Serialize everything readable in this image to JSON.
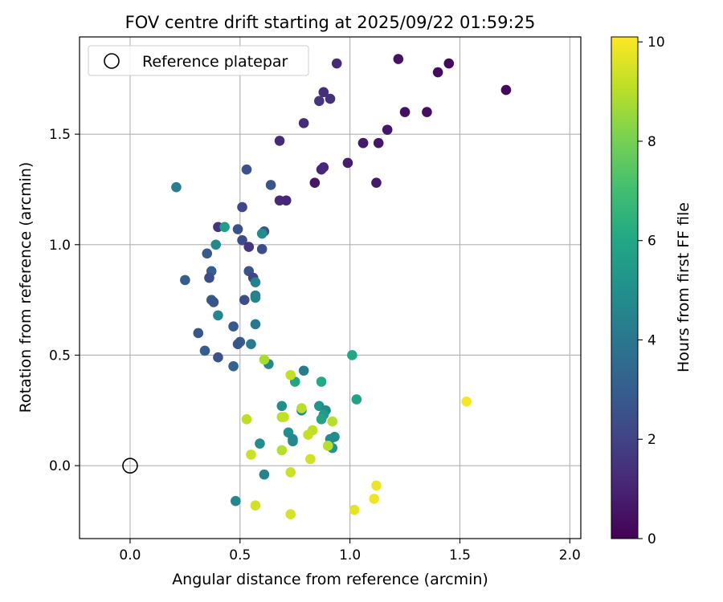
{
  "chart_data": {
    "type": "scatter",
    "title": "FOV centre drift starting at 2025/09/22 01:59:25",
    "xlabel": "Angular distance from reference (arcmin)",
    "ylabel": "Rotation from reference (arcmin)",
    "xlim": [
      -0.23,
      2.05
    ],
    "ylim": [
      -0.33,
      1.94
    ],
    "xticks": [
      0.0,
      0.5,
      1.0,
      1.5,
      2.0
    ],
    "xtick_labels": [
      "0.0",
      "0.5",
      "1.0",
      "1.5",
      "2.0"
    ],
    "yticks": [
      0.0,
      0.5,
      1.0,
      1.5
    ],
    "ytick_labels": [
      "0.0",
      "0.5",
      "1.0",
      "1.5"
    ],
    "grid": true,
    "legend": {
      "position": "upper-left",
      "entries": [
        {
          "label": "Reference platepar",
          "marker": "open-circle"
        }
      ]
    },
    "reference_point": {
      "x": 0.0,
      "y": 0.0
    },
    "colorbar": {
      "label": "Hours from first FF file",
      "colormap": "viridis",
      "range": [
        0,
        10.1
      ],
      "ticks": [
        0,
        2,
        4,
        6,
        8,
        10
      ],
      "tick_labels": [
        "0",
        "2",
        "4",
        "6",
        "8",
        "10"
      ]
    },
    "points": [
      {
        "x": 1.71,
        "y": 1.7,
        "h": 0.2
      },
      {
        "x": 1.45,
        "y": 1.82,
        "h": 0.2
      },
      {
        "x": 1.4,
        "y": 1.78,
        "h": 0.3
      },
      {
        "x": 1.22,
        "y": 1.84,
        "h": 0.5
      },
      {
        "x": 1.35,
        "y": 1.6,
        "h": 0.4
      },
      {
        "x": 1.25,
        "y": 1.6,
        "h": 0.4
      },
      {
        "x": 1.17,
        "y": 1.52,
        "h": 0.6
      },
      {
        "x": 1.13,
        "y": 1.46,
        "h": 0.6
      },
      {
        "x": 1.06,
        "y": 1.46,
        "h": 0.6
      },
      {
        "x": 1.06,
        "y": 1.46,
        "h": 0.7
      },
      {
        "x": 0.99,
        "y": 1.37,
        "h": 0.8
      },
      {
        "x": 1.12,
        "y": 1.28,
        "h": 0.7
      },
      {
        "x": 0.84,
        "y": 1.28,
        "h": 0.6
      },
      {
        "x": 0.87,
        "y": 1.34,
        "h": 1.0
      },
      {
        "x": 0.88,
        "y": 1.35,
        "h": 1.1
      },
      {
        "x": 0.94,
        "y": 1.82,
        "h": 1.2
      },
      {
        "x": 0.88,
        "y": 1.69,
        "h": 1.3
      },
      {
        "x": 0.86,
        "y": 1.65,
        "h": 1.5
      },
      {
        "x": 0.91,
        "y": 1.66,
        "h": 1.4
      },
      {
        "x": 0.79,
        "y": 1.55,
        "h": 1.3
      },
      {
        "x": 0.68,
        "y": 1.47,
        "h": 1.2
      },
      {
        "x": 0.68,
        "y": 1.2,
        "h": 1.2
      },
      {
        "x": 0.71,
        "y": 1.2,
        "h": 1.1
      },
      {
        "x": 0.53,
        "y": 1.34,
        "h": 2.5
      },
      {
        "x": 0.64,
        "y": 1.27,
        "h": 2.7
      },
      {
        "x": 0.51,
        "y": 1.17,
        "h": 2.1
      },
      {
        "x": 0.4,
        "y": 1.08,
        "h": 1.5
      },
      {
        "x": 0.49,
        "y": 1.07,
        "h": 2.5
      },
      {
        "x": 0.61,
        "y": 1.06,
        "h": 2.6
      },
      {
        "x": 0.51,
        "y": 1.02,
        "h": 2.3
      },
      {
        "x": 0.54,
        "y": 0.99,
        "h": 1.5
      },
      {
        "x": 0.6,
        "y": 0.98,
        "h": 2.4
      },
      {
        "x": 0.35,
        "y": 0.96,
        "h": 2.9
      },
      {
        "x": 0.37,
        "y": 0.88,
        "h": 3.0
      },
      {
        "x": 0.54,
        "y": 0.88,
        "h": 2.6
      },
      {
        "x": 0.56,
        "y": 0.85,
        "h": 2.0
      },
      {
        "x": 0.36,
        "y": 0.85,
        "h": 2.4
      },
      {
        "x": 0.25,
        "y": 0.84,
        "h": 3.0
      },
      {
        "x": 0.37,
        "y": 0.75,
        "h": 2.8
      },
      {
        "x": 0.38,
        "y": 0.74,
        "h": 2.6
      },
      {
        "x": 0.52,
        "y": 0.75,
        "h": 2.4
      },
      {
        "x": 0.47,
        "y": 0.63,
        "h": 2.8
      },
      {
        "x": 0.31,
        "y": 0.6,
        "h": 2.7
      },
      {
        "x": 0.5,
        "y": 0.56,
        "h": 2.9
      },
      {
        "x": 0.49,
        "y": 0.55,
        "h": 2.7
      },
      {
        "x": 0.34,
        "y": 0.52,
        "h": 3.0
      },
      {
        "x": 0.4,
        "y": 0.49,
        "h": 2.6
      },
      {
        "x": 0.47,
        "y": 0.45,
        "h": 3.1
      },
      {
        "x": 0.21,
        "y": 1.26,
        "h": 4.3
      },
      {
        "x": 0.43,
        "y": 1.08,
        "h": 5.6
      },
      {
        "x": 0.39,
        "y": 1.0,
        "h": 4.7
      },
      {
        "x": 0.6,
        "y": 1.05,
        "h": 4.8
      },
      {
        "x": 0.57,
        "y": 0.83,
        "h": 4.4
      },
      {
        "x": 0.57,
        "y": 0.77,
        "h": 4.2
      },
      {
        "x": 0.57,
        "y": 0.76,
        "h": 4.5
      },
      {
        "x": 0.4,
        "y": 0.68,
        "h": 4.6
      },
      {
        "x": 0.57,
        "y": 0.64,
        "h": 4.1
      },
      {
        "x": 0.55,
        "y": 0.55,
        "h": 4.2
      },
      {
        "x": 0.63,
        "y": 0.46,
        "h": 4.6
      },
      {
        "x": 0.79,
        "y": 0.43,
        "h": 4.2
      },
      {
        "x": 1.01,
        "y": 0.5,
        "h": 6.0
      },
      {
        "x": 0.87,
        "y": 0.38,
        "h": 6.1
      },
      {
        "x": 0.75,
        "y": 0.38,
        "h": 5.9
      },
      {
        "x": 1.03,
        "y": 0.3,
        "h": 5.8
      },
      {
        "x": 0.69,
        "y": 0.27,
        "h": 5.0
      },
      {
        "x": 0.86,
        "y": 0.27,
        "h": 5.2
      },
      {
        "x": 0.78,
        "y": 0.25,
        "h": 4.7
      },
      {
        "x": 0.89,
        "y": 0.25,
        "h": 4.8
      },
      {
        "x": 0.88,
        "y": 0.23,
        "h": 5.5
      },
      {
        "x": 0.87,
        "y": 0.21,
        "h": 5.8
      },
      {
        "x": 0.72,
        "y": 0.15,
        "h": 5.0
      },
      {
        "x": 0.74,
        "y": 0.12,
        "h": 4.6
      },
      {
        "x": 0.74,
        "y": 0.11,
        "h": 4.7
      },
      {
        "x": 0.59,
        "y": 0.1,
        "h": 4.9
      },
      {
        "x": 0.91,
        "y": 0.12,
        "h": 4.8
      },
      {
        "x": 0.93,
        "y": 0.13,
        "h": 4.9
      },
      {
        "x": 0.92,
        "y": 0.08,
        "h": 5.2
      },
      {
        "x": 0.61,
        "y": -0.04,
        "h": 4.5
      },
      {
        "x": 0.48,
        "y": -0.16,
        "h": 4.6
      },
      {
        "x": 0.61,
        "y": 0.48,
        "h": 8.8
      },
      {
        "x": 0.73,
        "y": 0.41,
        "h": 9.2
      },
      {
        "x": 1.53,
        "y": 0.29,
        "h": 10.0
      },
      {
        "x": 0.78,
        "y": 0.26,
        "h": 9.0
      },
      {
        "x": 0.53,
        "y": 0.21,
        "h": 9.1
      },
      {
        "x": 0.69,
        "y": 0.22,
        "h": 9.0
      },
      {
        "x": 0.7,
        "y": 0.22,
        "h": 9.2
      },
      {
        "x": 0.92,
        "y": 0.2,
        "h": 9.0
      },
      {
        "x": 0.83,
        "y": 0.16,
        "h": 9.1
      },
      {
        "x": 0.81,
        "y": 0.14,
        "h": 9.2
      },
      {
        "x": 0.9,
        "y": 0.09,
        "h": 9.0
      },
      {
        "x": 0.69,
        "y": 0.07,
        "h": 9.0
      },
      {
        "x": 0.55,
        "y": 0.05,
        "h": 9.3
      },
      {
        "x": 0.82,
        "y": 0.03,
        "h": 9.4
      },
      {
        "x": 0.73,
        "y": -0.03,
        "h": 9.3
      },
      {
        "x": 1.12,
        "y": -0.09,
        "h": 9.8
      },
      {
        "x": 1.11,
        "y": -0.15,
        "h": 9.9
      },
      {
        "x": 0.57,
        "y": -0.18,
        "h": 9.4
      },
      {
        "x": 1.02,
        "y": -0.2,
        "h": 9.7
      },
      {
        "x": 0.73,
        "y": -0.22,
        "h": 9.5
      }
    ]
  }
}
